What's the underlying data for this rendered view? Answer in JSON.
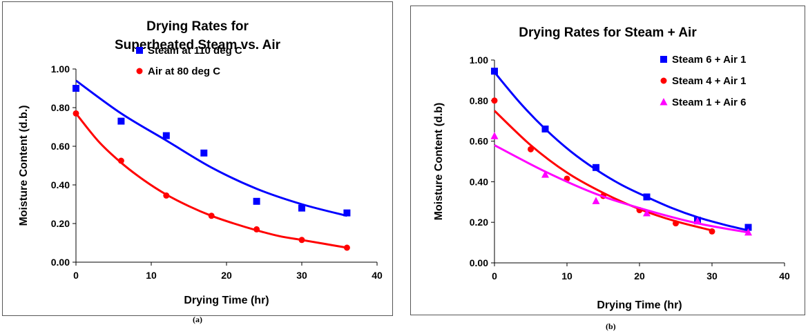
{
  "chart_data": [
    {
      "type": "scatter",
      "title_lines": [
        "Drying Rates for",
        "Superheated Steam vs. Air"
      ],
      "xlabel": "Drying Time (hr)",
      "ylabel": "Moisture Content (d.b.)",
      "xlim": [
        0,
        40
      ],
      "ylim": [
        0,
        1.0
      ],
      "xticks": [
        "0",
        "10",
        "20",
        "30",
        "40"
      ],
      "yticks": [
        "0.00",
        "0.20",
        "0.40",
        "0.60",
        "0.80",
        "1.00"
      ],
      "grid": false,
      "legend_position": "top-right",
      "caption": "(a)",
      "series": [
        {
          "name": "Steam at 110 deg C",
          "marker": "square",
          "color": "#0000ff",
          "points": [
            [
              0,
              0.9
            ],
            [
              6,
              0.73
            ],
            [
              12,
              0.655
            ],
            [
              17,
              0.565
            ],
            [
              24,
              0.315
            ],
            [
              30,
              0.28
            ],
            [
              36,
              0.255
            ]
          ],
          "fit_curve": [
            [
              0,
              0.94
            ],
            [
              6,
              0.77
            ],
            [
              12,
              0.63
            ],
            [
              18,
              0.49
            ],
            [
              24,
              0.38
            ],
            [
              30,
              0.3
            ],
            [
              36,
              0.24
            ]
          ]
        },
        {
          "name": "Air at 80 deg C",
          "marker": "circle",
          "color": "#ff0000",
          "points": [
            [
              0,
              0.77
            ],
            [
              6,
              0.525
            ],
            [
              12,
              0.345
            ],
            [
              18,
              0.24
            ],
            [
              24,
              0.17
            ],
            [
              30,
              0.115
            ],
            [
              36,
              0.075
            ]
          ],
          "fit_curve": [
            [
              0,
              0.77
            ],
            [
              3,
              0.625
            ],
            [
              6,
              0.515
            ],
            [
              9,
              0.425
            ],
            [
              12,
              0.35
            ],
            [
              15,
              0.29
            ],
            [
              18,
              0.24
            ],
            [
              21,
              0.2
            ],
            [
              24,
              0.165
            ],
            [
              27,
              0.135
            ],
            [
              30,
              0.115
            ],
            [
              33,
              0.095
            ],
            [
              36,
              0.075
            ]
          ]
        }
      ]
    },
    {
      "type": "scatter",
      "title_lines": [
        "Drying Rates for Steam + Air"
      ],
      "xlabel": "Drying Time (hr)",
      "ylabel": "Moisture Content (d.b)",
      "xlim": [
        0,
        40
      ],
      "ylim": [
        0,
        1.0
      ],
      "xticks": [
        "0",
        "10",
        "20",
        "30",
        "40"
      ],
      "yticks": [
        "0.00",
        "0.20",
        "0.40",
        "0.60",
        "0.80",
        "1.00"
      ],
      "grid": false,
      "legend_position": "top-right",
      "caption": "(b)",
      "series": [
        {
          "name": "Steam 6 + Air 1",
          "marker": "square",
          "color": "#0000ff",
          "points": [
            [
              0,
              0.945
            ],
            [
              7,
              0.66
            ],
            [
              14,
              0.47
            ],
            [
              21,
              0.325
            ],
            [
              28,
              0.21
            ],
            [
              35,
              0.175
            ]
          ],
          "fit_curve": [
            [
              0,
              0.94
            ],
            [
              3.5,
              0.79
            ],
            [
              7,
              0.66
            ],
            [
              10.5,
              0.55
            ],
            [
              14,
              0.46
            ],
            [
              17.5,
              0.385
            ],
            [
              21,
              0.325
            ],
            [
              24.5,
              0.27
            ],
            [
              28,
              0.225
            ],
            [
              31.5,
              0.19
            ],
            [
              35,
              0.16
            ]
          ]
        },
        {
          "name": "Steam 4 + Air 1",
          "marker": "circle",
          "color": "#ff0000",
          "points": [
            [
              0,
              0.8
            ],
            [
              5,
              0.56
            ],
            [
              10,
              0.415
            ],
            [
              15,
              0.33
            ],
            [
              20,
              0.26
            ],
            [
              25,
              0.195
            ],
            [
              30,
              0.155
            ]
          ],
          "fit_curve": [
            [
              0,
              0.75
            ],
            [
              5,
              0.58
            ],
            [
              10,
              0.445
            ],
            [
              15,
              0.345
            ],
            [
              20,
              0.265
            ],
            [
              25,
              0.205
            ],
            [
              30,
              0.16
            ]
          ]
        },
        {
          "name": "Steam 1 + Air 6",
          "marker": "triangle",
          "color": "#ff00ff",
          "points": [
            [
              0,
              0.625
            ],
            [
              7,
              0.435
            ],
            [
              14,
              0.305
            ],
            [
              21,
              0.245
            ],
            [
              28,
              0.205
            ],
            [
              35,
              0.15
            ]
          ],
          "fit_curve": [
            [
              0,
              0.58
            ],
            [
              7,
              0.45
            ],
            [
              14,
              0.34
            ],
            [
              21,
              0.26
            ],
            [
              28,
              0.195
            ],
            [
              35,
              0.15
            ]
          ]
        }
      ]
    }
  ]
}
